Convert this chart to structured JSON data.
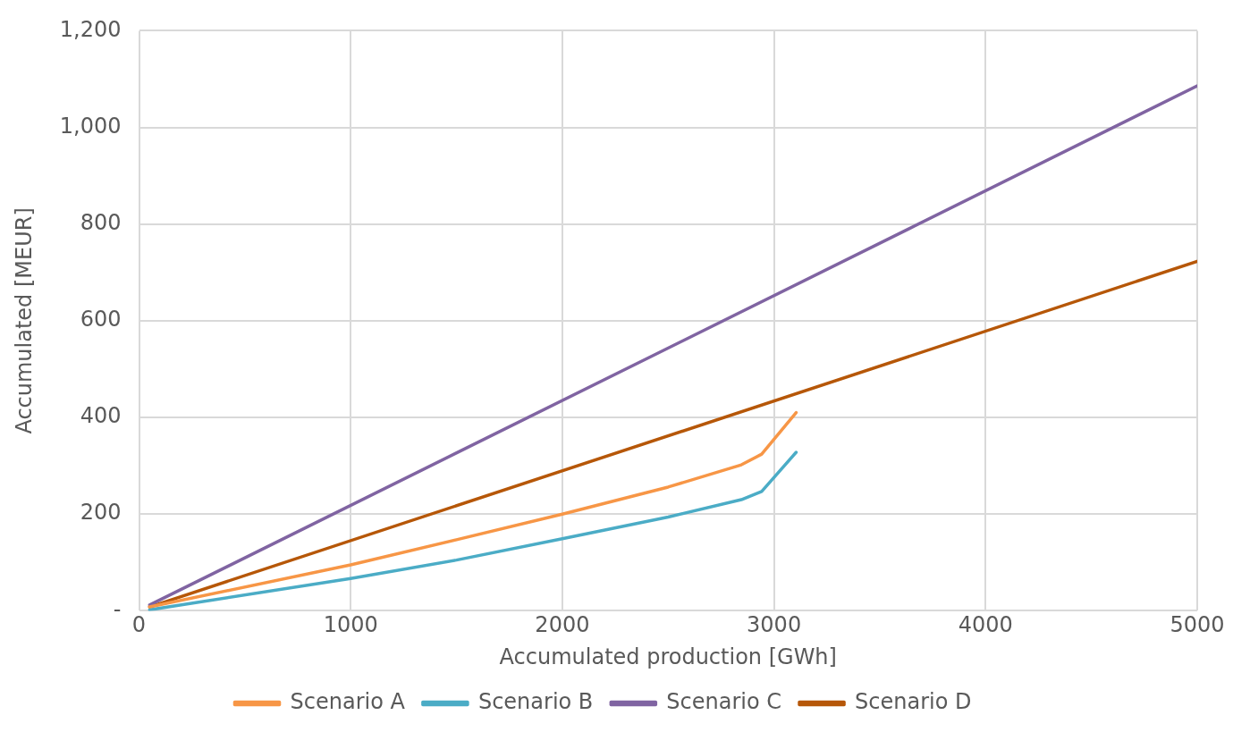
{
  "chart_data": {
    "type": "line",
    "xlabel": "Accumulated production [GWh]",
    "ylabel": "Accumulated [MEUR]",
    "xlim": [
      0,
      5000
    ],
    "xticks": [
      0,
      1000,
      2000,
      3000,
      4000,
      5000
    ],
    "ylim": [
      0,
      1200
    ],
    "yticks": [
      {
        "value": 0,
        "label": "-"
      },
      {
        "value": 200,
        "label": "200"
      },
      {
        "value": 400,
        "label": "400"
      },
      {
        "value": 600,
        "label": "600"
      },
      {
        "value": 800,
        "label": "800"
      },
      {
        "value": 1000,
        "label": "1,000"
      },
      {
        "value": 1200,
        "label": "1,200"
      }
    ],
    "grid": true,
    "legend": "bottom",
    "marker": "none",
    "line_style": "solid",
    "series": [
      {
        "name": "Scenario A",
        "color": "#f79646",
        "x": [
          50,
          1000,
          1500,
          2000,
          2500,
          2846,
          2942,
          3105
        ],
        "values": [
          8,
          95,
          147,
          200,
          256,
          302,
          324,
          410
        ]
      },
      {
        "name": "Scenario B",
        "color": "#4bacc6",
        "x": [
          50,
          1000,
          1500,
          2000,
          2500,
          2846,
          2942,
          3105
        ],
        "values": [
          2,
          67,
          105,
          149,
          194,
          230,
          247,
          328
        ]
      },
      {
        "name": "Scenario C",
        "color": "#8064a2",
        "x": [
          50,
          5000
        ],
        "values": [
          12,
          1086
        ]
      },
      {
        "name": "Scenario D",
        "color": "#b65708",
        "x": [
          50,
          5000
        ],
        "values": [
          8,
          723
        ]
      }
    ]
  }
}
